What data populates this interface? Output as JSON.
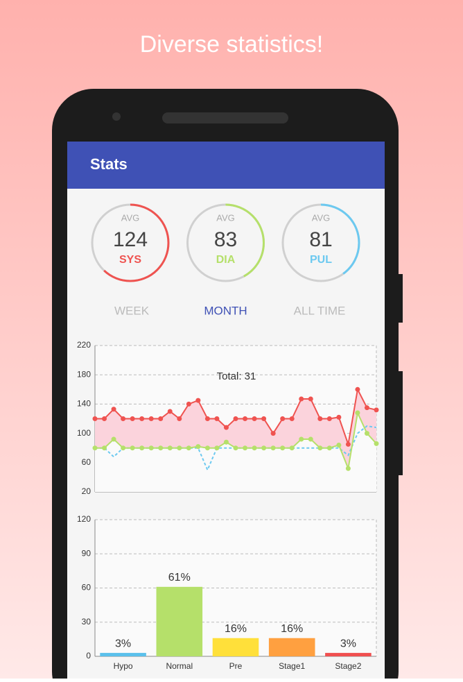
{
  "header": {
    "title": "Diverse statistics!"
  },
  "app_bar": {
    "title": "Stats"
  },
  "gauges": [
    {
      "caption": "AVG",
      "value": 124,
      "label": "SYS",
      "color": "#ef5350"
    },
    {
      "caption": "AVG",
      "value": 83,
      "label": "DIA",
      "color": "#b5e06a"
    },
    {
      "caption": "AVG",
      "value": 81,
      "label": "PUL",
      "color": "#6cc9f0"
    }
  ],
  "tabs": [
    "WEEK",
    "MONTH",
    "ALL TIME"
  ],
  "selected_tab": 1,
  "chart_data": [
    {
      "type": "line",
      "annotation": "Total: 31",
      "ylim": [
        20,
        220
      ],
      "yticks": [
        20,
        60,
        100,
        140,
        180,
        220
      ],
      "grid": true,
      "series": [
        {
          "name": "SYS",
          "color": "#ef5350",
          "fill": "#fbd3dc",
          "markers": true,
          "values": [
            120,
            120,
            133,
            120,
            120,
            120,
            120,
            120,
            130,
            120,
            140,
            145,
            120,
            120,
            108,
            120,
            120,
            120,
            120,
            100,
            120,
            120,
            147,
            147,
            120,
            120,
            122,
            85,
            160,
            135,
            132
          ]
        },
        {
          "name": "DIA",
          "color": "#b5e06a",
          "fill": "#fafafa",
          "markers": true,
          "values": [
            80,
            80,
            92,
            80,
            80,
            80,
            80,
            80,
            80,
            80,
            80,
            82,
            80,
            80,
            88,
            80,
            80,
            80,
            80,
            80,
            80,
            80,
            92,
            92,
            80,
            80,
            84,
            52,
            128,
            100,
            86
          ]
        },
        {
          "name": "PUL",
          "color": "#6cc9f0",
          "dashed": true,
          "markers": false,
          "values": [
            80,
            80,
            68,
            80,
            80,
            80,
            80,
            80,
            80,
            80,
            80,
            80,
            50,
            80,
            80,
            80,
            80,
            80,
            80,
            80,
            80,
            80,
            80,
            80,
            80,
            80,
            80,
            70,
            100,
            110,
            108
          ]
        }
      ]
    },
    {
      "type": "bar",
      "categories": [
        "Hypo",
        "Normal",
        "Pre",
        "Stage1",
        "Stage2"
      ],
      "values": [
        3,
        61,
        16,
        16,
        3
      ],
      "value_labels": [
        "3%",
        "61%",
        "16%",
        "16%",
        "3%"
      ],
      "colors": [
        "#5bc0eb",
        "#b5e06a",
        "#ffe03a",
        "#ffa040",
        "#f05050"
      ],
      "ylim": [
        0,
        120
      ],
      "yticks": [
        0,
        30,
        60,
        90,
        120
      ],
      "grid": true
    }
  ]
}
